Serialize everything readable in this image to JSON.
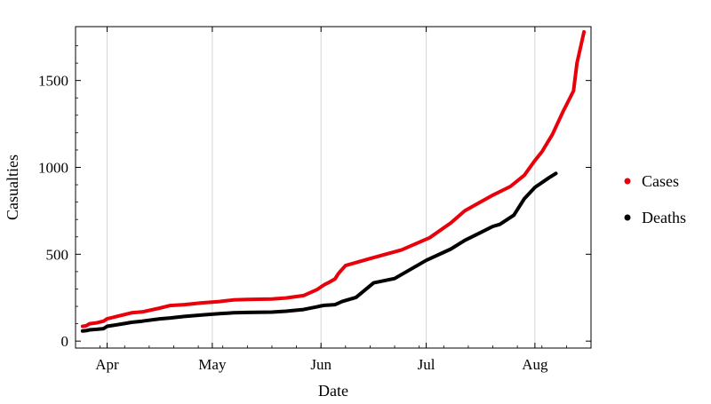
{
  "chart_data": {
    "type": "line",
    "title": "",
    "xlabel": "Date",
    "ylabel": "Casualties",
    "x_ticks": [
      "Apr",
      "May",
      "Jun",
      "Jul",
      "Aug"
    ],
    "y_ticks": [
      "0",
      "500",
      "1000",
      "1500"
    ],
    "y_tick_values": [
      0,
      500,
      1000,
      1500
    ],
    "ylim": [
      -40,
      1810
    ],
    "xlim": [
      "2020-03-23",
      "2020-08-17"
    ],
    "x_tick_dates": [
      "2020-04-01",
      "2020-05-01",
      "2020-06-01",
      "2020-07-01",
      "2020-08-01"
    ],
    "grid": "vertical",
    "legend_position": "right",
    "series": [
      {
        "name": "Cases",
        "color": "#e8000b",
        "points": [
          [
            "2020-03-25",
            85
          ],
          [
            "2020-03-26",
            88
          ],
          [
            "2020-03-27",
            100
          ],
          [
            "2020-03-29",
            105
          ],
          [
            "2020-03-31",
            115
          ],
          [
            "2020-04-01",
            128
          ],
          [
            "2020-04-05",
            148
          ],
          [
            "2020-04-08",
            163
          ],
          [
            "2020-04-11",
            168
          ],
          [
            "2020-04-16",
            190
          ],
          [
            "2020-04-19",
            205
          ],
          [
            "2020-04-23",
            210
          ],
          [
            "2020-04-28",
            220
          ],
          [
            "2020-05-03",
            228
          ],
          [
            "2020-05-07",
            237
          ],
          [
            "2020-05-11",
            240
          ],
          [
            "2020-05-18",
            242
          ],
          [
            "2020-05-22",
            248
          ],
          [
            "2020-05-27",
            262
          ],
          [
            "2020-05-31",
            298
          ],
          [
            "2020-06-01",
            312
          ],
          [
            "2020-06-02",
            325
          ],
          [
            "2020-06-03",
            335
          ],
          [
            "2020-06-05",
            358
          ],
          [
            "2020-06-06",
            390
          ],
          [
            "2020-06-08",
            435
          ],
          [
            "2020-06-15",
            475
          ],
          [
            "2020-06-24",
            525
          ],
          [
            "2020-07-02",
            595
          ],
          [
            "2020-07-08",
            680
          ],
          [
            "2020-07-12",
            750
          ],
          [
            "2020-07-20",
            840
          ],
          [
            "2020-07-25",
            890
          ],
          [
            "2020-07-29",
            955
          ],
          [
            "2020-08-01",
            1040
          ],
          [
            "2020-08-03",
            1090
          ],
          [
            "2020-08-06",
            1190
          ],
          [
            "2020-08-09",
            1320
          ],
          [
            "2020-08-12",
            1440
          ],
          [
            "2020-08-13",
            1600
          ],
          [
            "2020-08-15",
            1780
          ]
        ]
      },
      {
        "name": "Deaths",
        "color": "#000000",
        "points": [
          [
            "2020-03-25",
            58
          ],
          [
            "2020-03-26",
            60
          ],
          [
            "2020-03-27",
            65
          ],
          [
            "2020-03-29",
            68
          ],
          [
            "2020-03-31",
            72
          ],
          [
            "2020-04-01",
            85
          ],
          [
            "2020-04-05",
            98
          ],
          [
            "2020-04-08",
            108
          ],
          [
            "2020-04-11",
            115
          ],
          [
            "2020-04-16",
            128
          ],
          [
            "2020-04-19",
            133
          ],
          [
            "2020-04-23",
            142
          ],
          [
            "2020-04-28",
            150
          ],
          [
            "2020-05-03",
            158
          ],
          [
            "2020-05-07",
            163
          ],
          [
            "2020-05-11",
            165
          ],
          [
            "2020-05-18",
            167
          ],
          [
            "2020-05-22",
            172
          ],
          [
            "2020-05-27",
            182
          ],
          [
            "2020-05-31",
            198
          ],
          [
            "2020-06-01",
            203
          ],
          [
            "2020-06-02",
            206
          ],
          [
            "2020-06-05",
            210
          ],
          [
            "2020-06-07",
            228
          ],
          [
            "2020-06-11",
            252
          ],
          [
            "2020-06-16",
            335
          ],
          [
            "2020-06-22",
            360
          ],
          [
            "2020-07-01",
            465
          ],
          [
            "2020-07-08",
            530
          ],
          [
            "2020-07-12",
            580
          ],
          [
            "2020-07-16",
            620
          ],
          [
            "2020-07-20",
            660
          ],
          [
            "2020-07-22",
            672
          ],
          [
            "2020-07-26",
            725
          ],
          [
            "2020-07-29",
            820
          ],
          [
            "2020-08-01",
            885
          ],
          [
            "2020-08-05",
            940
          ],
          [
            "2020-08-07",
            965
          ]
        ]
      }
    ]
  }
}
